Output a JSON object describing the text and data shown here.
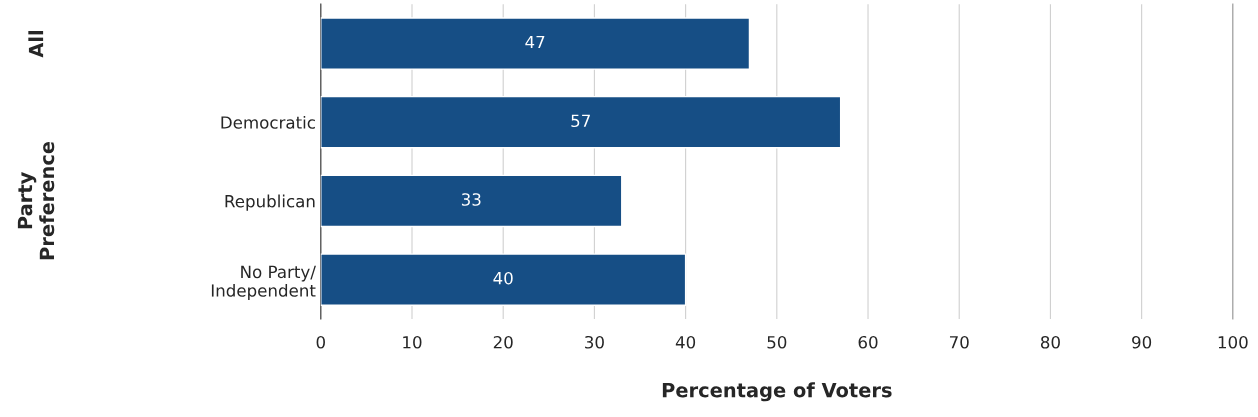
{
  "chart_data": {
    "type": "bar",
    "orientation": "horizontal",
    "categories": [
      null,
      "Democratic",
      "Republican",
      "No Party/\nIndependent"
    ],
    "values": [
      47,
      57,
      33,
      40
    ],
    "color": "#164e85",
    "data_labels": true,
    "xlabel": "Percentage of Voters",
    "xlim": [
      0,
      100
    ],
    "xticks": [
      0,
      10,
      20,
      30,
      40,
      50,
      60,
      70,
      80,
      90,
      100
    ],
    "grid": "x",
    "annotations": [
      "All",
      "Party\nPreference"
    ]
  }
}
